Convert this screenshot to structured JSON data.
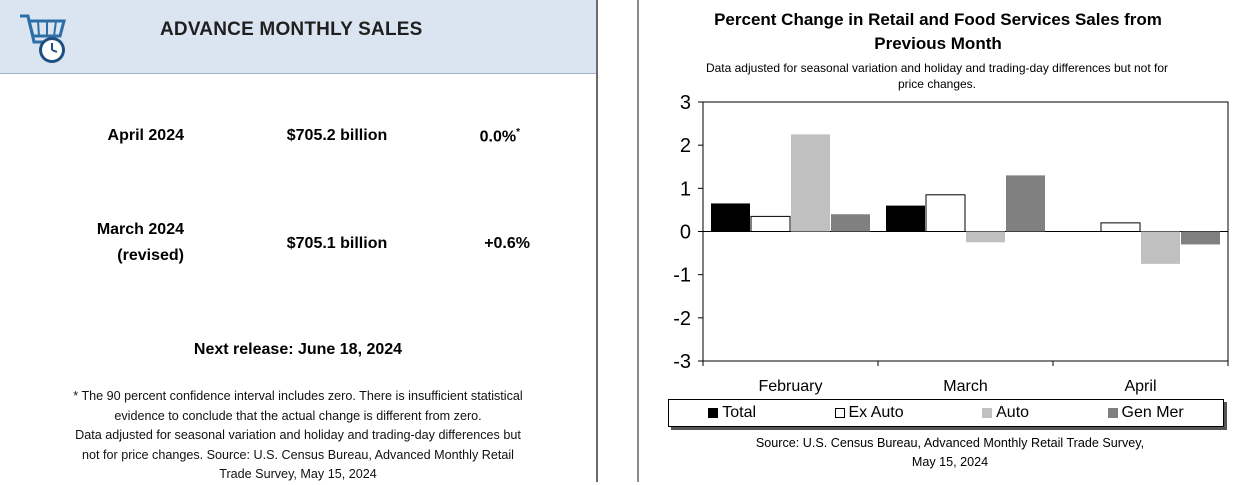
{
  "summary": {
    "title": "ADVANCE MONTHLY SALES",
    "rows": [
      {
        "label_line1": "April 2024",
        "label_line2": "",
        "value": "$705.2 billion",
        "pct": "0.0%",
        "pct_mark": "*"
      },
      {
        "label_line1": "March 2024",
        "label_line2": "(revised)",
        "value": "$705.1 billion",
        "pct": "+0.6%",
        "pct_mark": ""
      }
    ],
    "next_release": "Next release: June 18, 2024",
    "footnote_lines": [
      "* The 90 percent confidence interval includes zero. There is insufficient statistical",
      "evidence to conclude that the actual change is different from zero.",
      "Data adjusted for seasonal variation and holiday and trading-day differences but",
      "not for price changes. Source: U.S. Census Bureau, Advanced Monthly Retail",
      "Trade Survey, May 15, 2024"
    ]
  },
  "chart_data": {
    "type": "bar",
    "title_lines": [
      "Percent Change in Retail and Food Services Sales from",
      "Previous Month"
    ],
    "subtitle_lines": [
      "Data adjusted for seasonal variation and holiday and trading-day differences but not for",
      "price changes."
    ],
    "categories": [
      "February",
      "March",
      "April"
    ],
    "series": [
      {
        "name": "Total",
        "values": [
          0.65,
          0.6,
          0.0
        ],
        "color": "#000000"
      },
      {
        "name": "Ex Auto",
        "values": [
          0.35,
          0.85,
          0.2
        ],
        "color": "#ffffff"
      },
      {
        "name": "Auto",
        "values": [
          2.25,
          -0.25,
          -0.75
        ],
        "color": "#c0c0c0"
      },
      {
        "name": "Gen Mer",
        "values": [
          0.4,
          1.3,
          -0.3
        ],
        "color": "#808080"
      }
    ],
    "ylim": [
      -3,
      3
    ],
    "yticks": [
      "3",
      "2",
      "1",
      "0",
      "-1",
      "-2",
      "-3"
    ],
    "xlabel": "",
    "ylabel": "",
    "legend_position": "bottom",
    "grid": false,
    "source_lines": [
      "Source: U.S. Census Bureau, Advanced Monthly Retail Trade Survey,",
      "May 15, 2024"
    ]
  }
}
